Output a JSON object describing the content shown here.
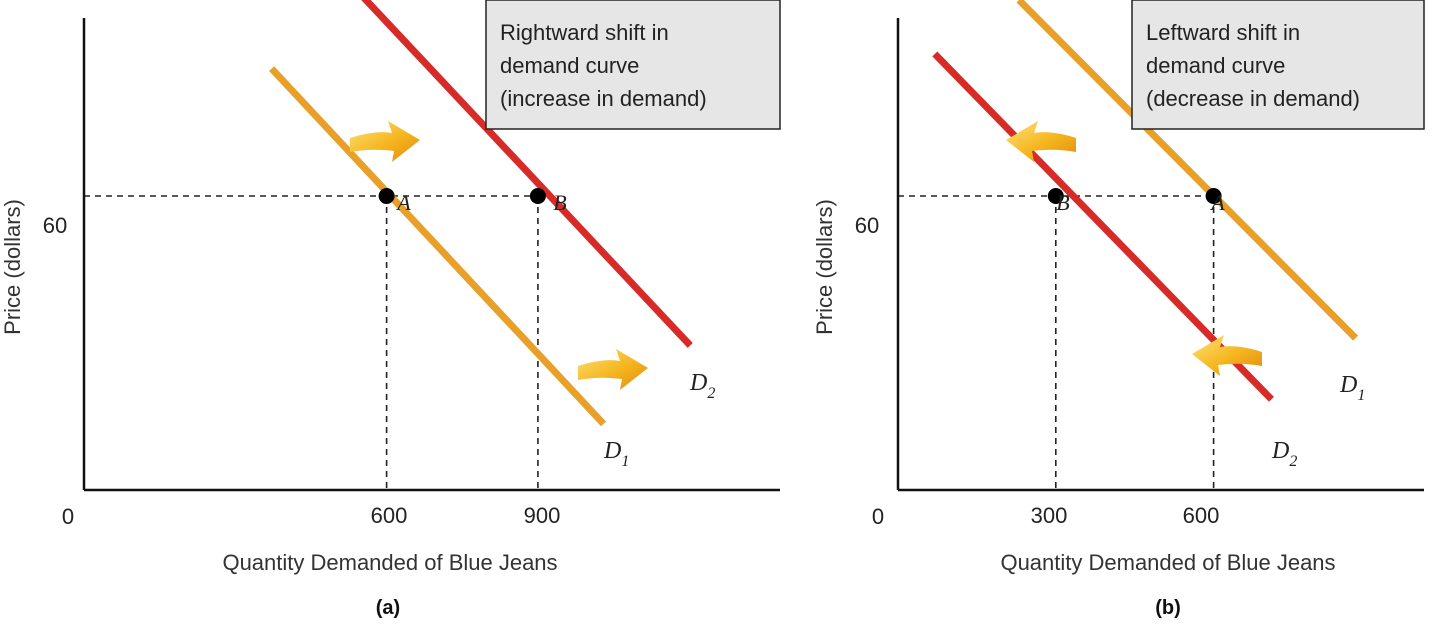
{
  "colors": {
    "d1": "#E8A02A",
    "d2": "#D62B26",
    "arrow": "#F2B21C",
    "box": "#E6E6E6",
    "axis": "#111111"
  },
  "chart_data": [
    {
      "type": "line",
      "panel_label": "(a)",
      "xlabel": "Quantity Demanded of Blue Jeans",
      "ylabel": "Price (dollars)",
      "origin_label": "0",
      "y_tick": {
        "value": 60,
        "label": "60"
      },
      "x_ticks": [
        {
          "value": 600,
          "label": "600"
        },
        {
          "value": 900,
          "label": "900"
        }
      ],
      "xlim": [
        0,
        1380
      ],
      "ylim": [
        0,
        100
      ],
      "grid": false,
      "annotation": {
        "lines": [
          "Rightward shift in",
          "demand curve",
          "(increase in demand)"
        ],
        "placement": "top-right"
      },
      "arrow_direction": "right",
      "series": [
        {
          "name": "D1",
          "base": "D",
          "sub": "1",
          "color": "d1",
          "points": [
            [
              372,
              86
            ],
            [
              1030,
              13.5
            ]
          ]
        },
        {
          "name": "D2",
          "base": "D",
          "sub": "2",
          "color": "d2",
          "points": [
            [
              550,
              101
            ],
            [
              1202,
              29.5
            ]
          ]
        }
      ],
      "points": [
        {
          "label": "A",
          "x": 600,
          "y": 60
        },
        {
          "label": "B",
          "x": 900,
          "y": 60
        }
      ]
    },
    {
      "type": "line",
      "panel_label": "(b)",
      "xlabel": "Quantity Demanded of Blue Jeans",
      "ylabel": "Price (dollars)",
      "origin_label": "0",
      "y_tick": {
        "value": 60,
        "label": "60"
      },
      "x_ticks": [
        {
          "value": 300,
          "label": "300"
        },
        {
          "value": 600,
          "label": "600"
        }
      ],
      "xlim": [
        0,
        1000
      ],
      "ylim": [
        0,
        100
      ],
      "grid": false,
      "annotation": {
        "lines": [
          "Leftward shift in",
          "demand curve",
          "(decrease in demand)"
        ],
        "placement": "top-right"
      },
      "arrow_direction": "left",
      "series": [
        {
          "name": "D1",
          "base": "D",
          "sub": "1",
          "color": "d1",
          "points": [
            [
              230,
              100
            ],
            [
              870,
              31
            ]
          ]
        },
        {
          "name": "D2",
          "base": "D",
          "sub": "2",
          "color": "d2",
          "points": [
            [
              70,
              89
            ],
            [
              710,
              18.5
            ]
          ]
        }
      ],
      "points": [
        {
          "label": "B",
          "x": 300,
          "y": 60
        },
        {
          "label": "A",
          "x": 600,
          "y": 60
        }
      ]
    }
  ]
}
